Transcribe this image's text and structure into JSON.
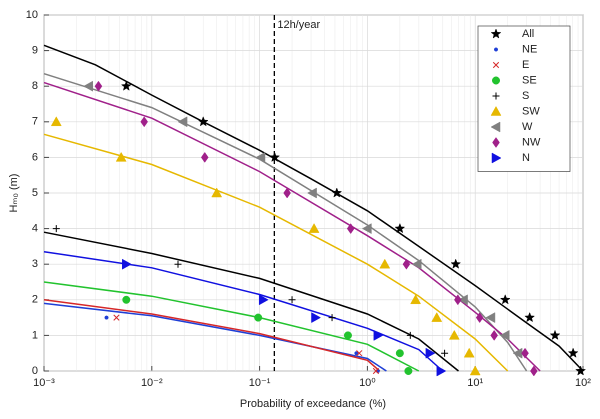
{
  "chart_data": {
    "type": "scatter-fit",
    "x_label": "Probability of exceedance (%)",
    "y_label": "Hₘ₀ (m)",
    "xscale": "log",
    "xlim": [
      0.001,
      100
    ],
    "ylim": [
      0,
      10
    ],
    "xticks": [
      {
        "value": 0.001,
        "label": "10⁻³"
      },
      {
        "value": 0.01,
        "label": "10⁻²"
      },
      {
        "value": 0.1,
        "label": "10⁻¹"
      },
      {
        "value": 1,
        "label": "10⁰"
      },
      {
        "value": 10,
        "label": "10¹"
      },
      {
        "value": 100,
        "label": "10²"
      }
    ],
    "yticks": [
      0,
      1,
      2,
      3,
      4,
      5,
      6,
      7,
      8,
      9,
      10
    ],
    "grid": true,
    "legend": "upper right",
    "annotations": [
      {
        "text": "12h/year",
        "x": 0.137
      }
    ],
    "series": [
      {
        "name": "All",
        "color": "#000000",
        "marker": "star",
        "x": [
          0.0058,
          0.03,
          0.138,
          0.52,
          2.0,
          6.6,
          19,
          32,
          55,
          81,
          95
        ],
        "values": [
          8,
          7,
          6,
          5,
          4,
          3,
          2,
          1.5,
          1,
          0.5,
          0
        ],
        "fit_x": [
          0.001,
          0.003,
          0.01,
          0.03,
          0.1,
          0.3,
          1,
          3,
          10,
          30,
          60,
          100
        ],
        "fit_values": [
          9.15,
          8.6,
          7.75,
          7.0,
          6.2,
          5.4,
          4.5,
          3.5,
          2.4,
          1.35,
          0.7,
          0
        ]
      },
      {
        "name": "NE",
        "color": "#1f3fd6",
        "marker": "dot",
        "x": [
          0.0038,
          0.79,
          1.25
        ],
        "values": [
          1.5,
          0.5,
          0
        ],
        "fit_x": [
          0.001,
          0.01,
          0.1,
          1,
          1.5
        ],
        "fit_values": [
          1.9,
          1.55,
          1.0,
          0.35,
          0
        ]
      },
      {
        "name": "E",
        "color": "#d62728",
        "marker": "x",
        "x": [
          0.0047,
          0.84,
          1.2
        ],
        "values": [
          1.5,
          0.5,
          0
        ],
        "fit_x": [
          0.001,
          0.01,
          0.1,
          1,
          1.3
        ],
        "fit_values": [
          2.0,
          1.6,
          1.05,
          0.3,
          0
        ]
      },
      {
        "name": "SE",
        "color": "#22c32e",
        "marker": "circle",
        "x": [
          0.0058,
          0.097,
          0.66,
          2.0,
          2.4
        ],
        "values": [
          2,
          1.5,
          1,
          0.5,
          0
        ],
        "fit_x": [
          0.001,
          0.01,
          0.1,
          1,
          3
        ],
        "fit_values": [
          2.5,
          2.1,
          1.5,
          0.75,
          0
        ]
      },
      {
        "name": "S",
        "color": "#000000",
        "marker": "plus",
        "x": [
          0.0013,
          0.0175,
          0.2,
          0.47,
          2.5,
          5.2
        ],
        "values": [
          4,
          3,
          2,
          1.5,
          1,
          0.5
        ],
        "fit_x": [
          0.001,
          0.01,
          0.1,
          1,
          3,
          7
        ],
        "fit_values": [
          3.9,
          3.3,
          2.6,
          1.6,
          0.9,
          0
        ]
      },
      {
        "name": "SW",
        "color": "#e6b800",
        "marker": "triangle-up",
        "x": [
          0.0013,
          0.0052,
          0.04,
          0.32,
          1.45,
          2.8,
          4.4,
          6.4,
          8.8,
          10
        ],
        "values": [
          7,
          6,
          5,
          4,
          3,
          2,
          1.5,
          1,
          0.5,
          0
        ],
        "fit_x": [
          0.001,
          0.01,
          0.1,
          1,
          3,
          10,
          20
        ],
        "fit_values": [
          6.65,
          5.8,
          4.6,
          3.0,
          2.1,
          0.9,
          0
        ]
      },
      {
        "name": "W",
        "color": "#808080",
        "marker": "triangle-left",
        "x": [
          0.0026,
          0.0195,
          0.103,
          0.31,
          1.0,
          2.9,
          7.8,
          14,
          19,
          25
        ],
        "values": [
          8,
          7,
          6,
          5,
          4,
          3,
          2,
          1.5,
          1,
          0.5
        ],
        "fit_x": [
          0.001,
          0.01,
          0.1,
          1,
          3,
          10,
          20,
          30
        ],
        "fit_values": [
          8.35,
          7.4,
          5.95,
          4.1,
          3.1,
          1.8,
          0.8,
          0
        ]
      },
      {
        "name": "NW",
        "color": "#a0208a",
        "marker": "diamond",
        "x": [
          0.0032,
          0.0085,
          0.031,
          0.18,
          0.7,
          2.3,
          6.9,
          11,
          15,
          29,
          35
        ],
        "values": [
          8,
          7,
          6,
          5,
          4,
          3,
          2,
          1.5,
          1,
          0.5,
          0
        ],
        "fit_x": [
          0.001,
          0.01,
          0.1,
          1,
          3,
          10,
          20,
          40
        ],
        "fit_values": [
          8.1,
          7.1,
          5.6,
          3.8,
          2.9,
          1.65,
          0.9,
          0
        ]
      },
      {
        "name": "N",
        "color": "#1010e0",
        "marker": "triangle-right",
        "x": [
          0.0058,
          0.108,
          0.33,
          1.25,
          3.8,
          4.8
        ],
        "values": [
          3,
          2,
          1.5,
          1,
          0.5,
          0
        ],
        "fit_x": [
          0.001,
          0.01,
          0.1,
          1,
          3,
          5
        ],
        "fit_values": [
          3.35,
          2.9,
          2.15,
          1.2,
          0.6,
          0
        ]
      }
    ]
  }
}
